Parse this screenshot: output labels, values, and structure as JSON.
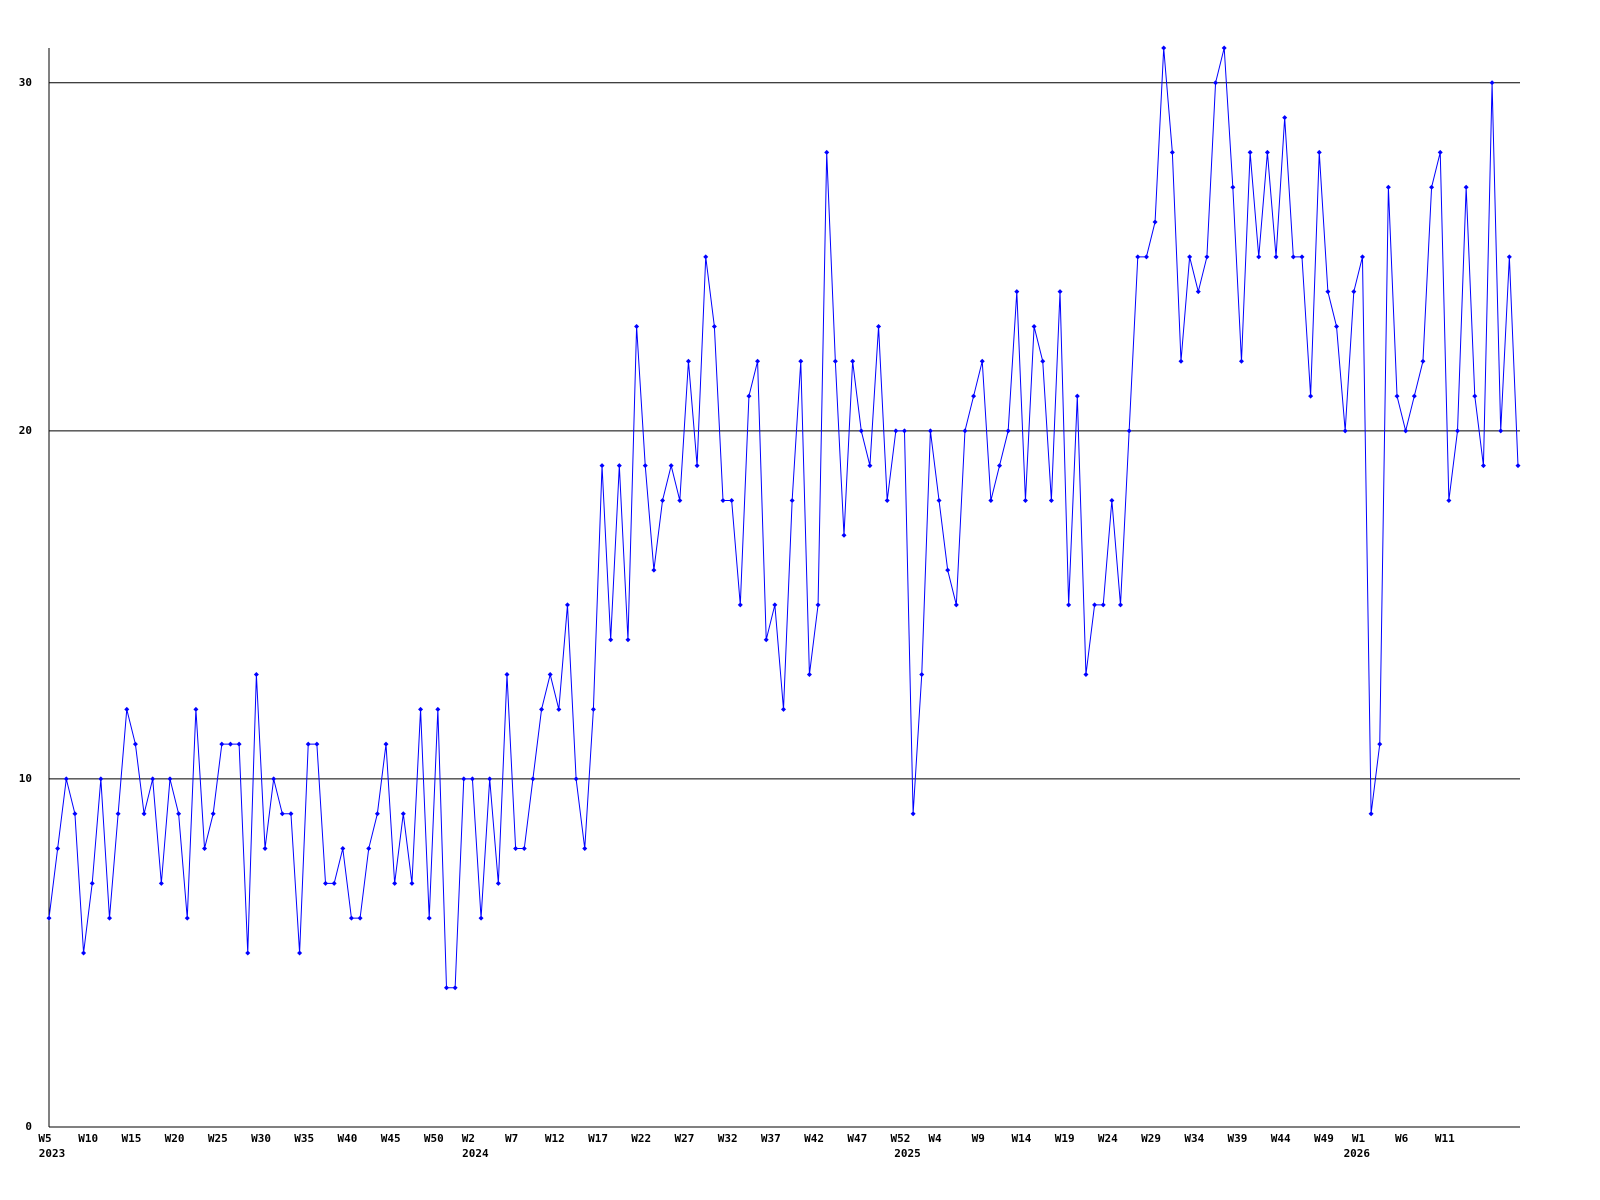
{
  "chart_data": {
    "type": "line",
    "categories": [
      "W5",
      null,
      null,
      null,
      null,
      "W10",
      null,
      null,
      null,
      null,
      "W15",
      null,
      null,
      null,
      null,
      "W20",
      null,
      null,
      null,
      null,
      "W25",
      null,
      null,
      null,
      null,
      "W30",
      null,
      null,
      null,
      null,
      "W35",
      null,
      null,
      null,
      null,
      "W40",
      null,
      null,
      null,
      null,
      "W45",
      null,
      null,
      null,
      null,
      "W50",
      null,
      null,
      null,
      "W2",
      null,
      null,
      null,
      null,
      "W7",
      null,
      null,
      null,
      null,
      "W12",
      null,
      null,
      null,
      null,
      "W17",
      null,
      null,
      null,
      null,
      "W22",
      null,
      null,
      null,
      null,
      "W27",
      null,
      null,
      null,
      null,
      "W32",
      null,
      null,
      null,
      null,
      "W37",
      null,
      null,
      null,
      null,
      "W42",
      null,
      null,
      null,
      null,
      "W47",
      null,
      null,
      null,
      null,
      "W52",
      null,
      null,
      null,
      "W4",
      null,
      null,
      null,
      null,
      "W9",
      null,
      null,
      null,
      null,
      "W14",
      null,
      null,
      null,
      null,
      "W19",
      null,
      null,
      null,
      null,
      "W24",
      null,
      null,
      null,
      null,
      "W29",
      null,
      null,
      null,
      null,
      "W34",
      null,
      null,
      null,
      null,
      "W39",
      null,
      null,
      null,
      null,
      "W44",
      null,
      null,
      null,
      null,
      "W49",
      null,
      null,
      null,
      "W1",
      null,
      null,
      null,
      null,
      "W6",
      null,
      null,
      null,
      null,
      "W11",
      null,
      null,
      null,
      null,
      null,
      null,
      null,
      null
    ],
    "year_labels": [
      "2023",
      null,
      null,
      null,
      null,
      null,
      null,
      null,
      null,
      null,
      null,
      null,
      null,
      null,
      null,
      null,
      null,
      null,
      null,
      null,
      null,
      null,
      null,
      null,
      null,
      null,
      null,
      null,
      null,
      null,
      null,
      null,
      null,
      null,
      null,
      null,
      null,
      null,
      null,
      null,
      null,
      null,
      null,
      null,
      null,
      null,
      null,
      null,
      null,
      "2024",
      null,
      null,
      null,
      null,
      null,
      null,
      null,
      null,
      null,
      null,
      null,
      null,
      null,
      null,
      null,
      null,
      null,
      null,
      null,
      null,
      null,
      null,
      null,
      null,
      null,
      null,
      null,
      null,
      null,
      null,
      null,
      null,
      null,
      null,
      null,
      null,
      null,
      null,
      null,
      null,
      null,
      null,
      null,
      null,
      null,
      null,
      null,
      null,
      null,
      "2025",
      null,
      null,
      null,
      null,
      null,
      null,
      null,
      null,
      null,
      null,
      null,
      null,
      null,
      null,
      null,
      null,
      null,
      null,
      null,
      null,
      null,
      null,
      null,
      null,
      null,
      null,
      null,
      null,
      null,
      null,
      null,
      null,
      null,
      null,
      null,
      null,
      null,
      null,
      null,
      null,
      null,
      null,
      null,
      null,
      null,
      null,
      null,
      null,
      null,
      null,
      null,
      "2026",
      null,
      null,
      null,
      null,
      null,
      null,
      null,
      null,
      null,
      null,
      null,
      null,
      null,
      null,
      null,
      null,
      null,
      null
    ],
    "series": [
      {
        "color": "#0000ff",
        "values": [
          6,
          8,
          10,
          9,
          5,
          7,
          10,
          6,
          9,
          12,
          11,
          9,
          10,
          7,
          10,
          9,
          6,
          12,
          8,
          9,
          11,
          11,
          11,
          5,
          13,
          8,
          10,
          9,
          9,
          5,
          11,
          11,
          7,
          7,
          8,
          6,
          6,
          8,
          9,
          11,
          7,
          9,
          7,
          12,
          6,
          12,
          4,
          4,
          10,
          10,
          6,
          10,
          7,
          13,
          8,
          8,
          10,
          12,
          13,
          12,
          15,
          10,
          8,
          12,
          19,
          14,
          19,
          14,
          23,
          19,
          16,
          18,
          19,
          18,
          22,
          19,
          25,
          23,
          18,
          18,
          15,
          21,
          22,
          14,
          15,
          12,
          18,
          22,
          13,
          15,
          28,
          22,
          17,
          22,
          20,
          19,
          23,
          18,
          20,
          20,
          9,
          13,
          20,
          18,
          16,
          15,
          20,
          21,
          22,
          18,
          19,
          20,
          24,
          18,
          23,
          22,
          18,
          24,
          15,
          21,
          13,
          15,
          15,
          18,
          15,
          20,
          25,
          25,
          26,
          31,
          28,
          22,
          25,
          24,
          25,
          30,
          31,
          27,
          22,
          28,
          25,
          28,
          25,
          29,
          25,
          25,
          21,
          28,
          24,
          23,
          20,
          24,
          25,
          9,
          11,
          27,
          21,
          20,
          21,
          22,
          27,
          28,
          18,
          20,
          27,
          21,
          19,
          30,
          20,
          25,
          19
        ]
      }
    ],
    "ylim": [
      0,
      31
    ],
    "yticks": [
      0,
      10,
      20,
      30
    ],
    "grid": true
  }
}
